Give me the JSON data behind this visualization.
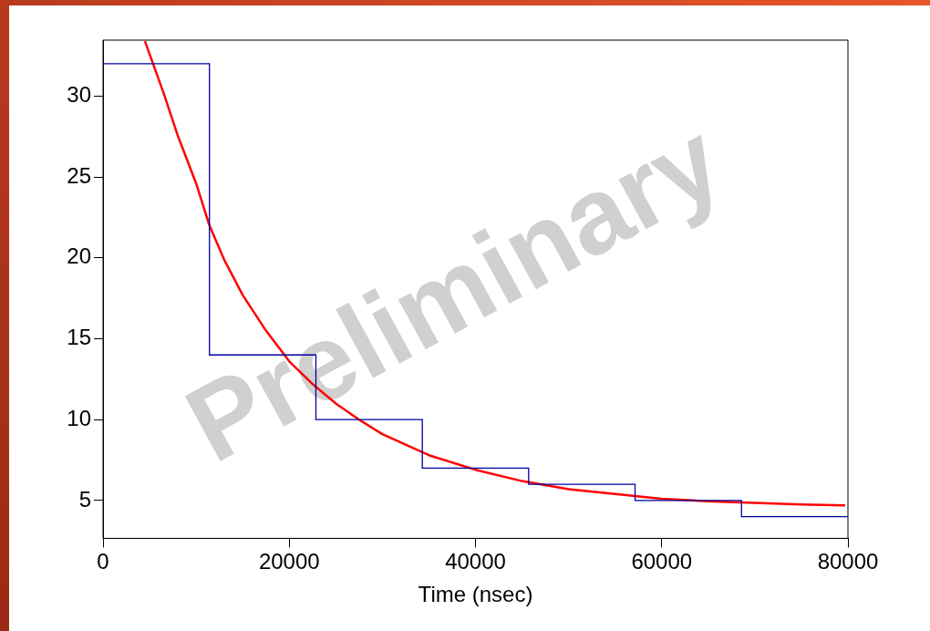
{
  "chart_data": {
    "type": "histogram",
    "xlabel": "Time (nsec)",
    "xlim": [
      0,
      80000
    ],
    "xticks": [
      0,
      20000,
      40000,
      60000,
      80000
    ],
    "ylim": [
      2.66,
      33.46
    ],
    "yticks": [
      5,
      10,
      15,
      20,
      25,
      30
    ],
    "series": [
      {
        "color": "#0000a0",
        "bins": [
          0,
          11430,
          22860,
          34290,
          45710,
          57140,
          68570,
          80000
        ],
        "values": [
          32,
          14,
          10,
          7,
          6,
          5,
          4
        ]
      },
      {
        "type": "line",
        "color": "#ff0000",
        "x": [
          4500,
          6500,
          8000,
          10000,
          11430,
          13000,
          15000,
          17500,
          20000,
          22500,
          25000,
          27500,
          30000,
          35000,
          40000,
          45000,
          50000,
          55000,
          60000,
          65000,
          70000,
          75000,
          79700
        ],
        "values": [
          33.4,
          30.2,
          27.6,
          24.6,
          22.0,
          19.9,
          17.7,
          15.5,
          13.6,
          12.2,
          11.0,
          10.0,
          9.1,
          7.8,
          6.9,
          6.2,
          5.7,
          5.4,
          5.1,
          4.95,
          4.85,
          4.75,
          4.7
        ]
      }
    ],
    "annotations": [
      "Preliminary"
    ],
    "grid": false,
    "legend": false
  }
}
